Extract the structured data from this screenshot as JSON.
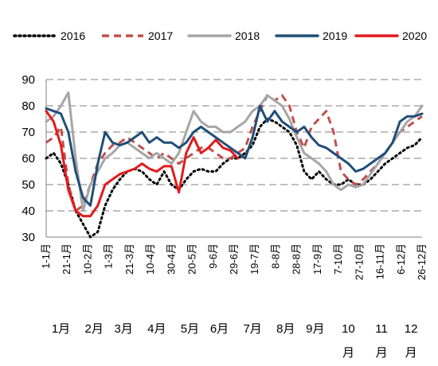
{
  "chart_data": {
    "type": "line",
    "title": "",
    "xlabel": "",
    "ylabel": "",
    "ylim": [
      30,
      90
    ],
    "y_ticks": [
      30,
      40,
      50,
      60,
      70,
      80,
      90
    ],
    "grid": "horizontal dashed",
    "legend_position": "top",
    "x_tick_labels": [
      "1-1月",
      "21-1月",
      "10-2月",
      "1-3月",
      "21-3月",
      "10-4月",
      "30-4月",
      "20-5月",
      "9-6月",
      "29-6月",
      "19-7月",
      "8-8月",
      "28-8月",
      "17-9月",
      "7-10月",
      "27-10月",
      "16-11月",
      "6-12月",
      "26-12月"
    ],
    "month_labels": [
      {
        "text": "1月",
        "week": 2
      },
      {
        "text": "2月",
        "week": 6.5
      },
      {
        "text": "3月",
        "week": 10.5
      },
      {
        "text": "4月",
        "week": 15
      },
      {
        "text": "5月",
        "week": 19.5
      },
      {
        "text": "6月",
        "week": 23.5
      },
      {
        "text": "7月",
        "week": 28
      },
      {
        "text": "8月",
        "week": 32.5
      },
      {
        "text": "9月",
        "week": 36.5
      },
      {
        "text": "10\n月",
        "week": 41
      },
      {
        "text": "11\n月",
        "week": 45.5
      },
      {
        "text": "12\n月",
        "week": 49.5
      }
    ],
    "series": [
      {
        "name": "2016",
        "color": "#000000",
        "style": "dotted",
        "values": [
          60,
          62,
          58,
          50,
          40,
          35,
          30,
          32,
          42,
          48,
          52,
          55,
          56,
          55,
          52,
          50,
          55,
          50,
          48,
          52,
          55,
          56,
          55,
          55,
          58,
          60,
          60,
          62,
          65,
          72,
          75,
          74,
          72,
          70,
          65,
          55,
          52,
          55,
          52,
          50,
          50,
          52,
          50,
          50,
          52,
          55,
          58,
          60,
          62,
          64,
          65,
          68
        ]
      },
      {
        "name": "2017",
        "color": "#c0504d",
        "style": "dashed",
        "values": [
          66,
          68,
          72,
          50,
          40,
          42,
          50,
          58,
          62,
          65,
          66,
          68,
          66,
          64,
          62,
          60,
          62,
          60,
          58,
          60,
          62,
          64,
          64,
          62,
          60,
          60,
          62,
          64,
          72,
          78,
          84,
          82,
          84,
          80,
          70,
          64,
          72,
          75,
          78,
          70,
          55,
          52,
          50,
          52,
          55,
          58,
          62,
          66,
          70,
          72,
          74,
          76
        ]
      },
      {
        "name": "2018",
        "color": "#a6a6a6",
        "style": "solid",
        "values": [
          74,
          76,
          80,
          85,
          60,
          40,
          50,
          55,
          60,
          62,
          65,
          66,
          64,
          62,
          60,
          62,
          60,
          58,
          62,
          70,
          78,
          74,
          72,
          72,
          70,
          70,
          72,
          74,
          78,
          80,
          84,
          82,
          80,
          75,
          68,
          62,
          60,
          58,
          55,
          50,
          48,
          50,
          49,
          50,
          54,
          58,
          62,
          66,
          70,
          74,
          76,
          80
        ]
      },
      {
        "name": "2019",
        "color": "#1f4e79",
        "style": "solid",
        "values": [
          79,
          78,
          77,
          70,
          55,
          45,
          42,
          58,
          70,
          66,
          65,
          66,
          68,
          70,
          66,
          68,
          66,
          66,
          64,
          66,
          70,
          72,
          70,
          68,
          66,
          64,
          62,
          60,
          68,
          80,
          74,
          78,
          74,
          72,
          70,
          72,
          68,
          65,
          64,
          62,
          60,
          58,
          55,
          56,
          58,
          60,
          62,
          66,
          74,
          76,
          76,
          77
        ]
      },
      {
        "name": "2020",
        "color": "#e31a1c",
        "style": "solid",
        "values": [
          78,
          74,
          65,
          48,
          40,
          38,
          38,
          42,
          50,
          52,
          54,
          55,
          56,
          58,
          56,
          55,
          57,
          57,
          47,
          62,
          68,
          62,
          64,
          67,
          64,
          63,
          60
        ]
      }
    ]
  }
}
